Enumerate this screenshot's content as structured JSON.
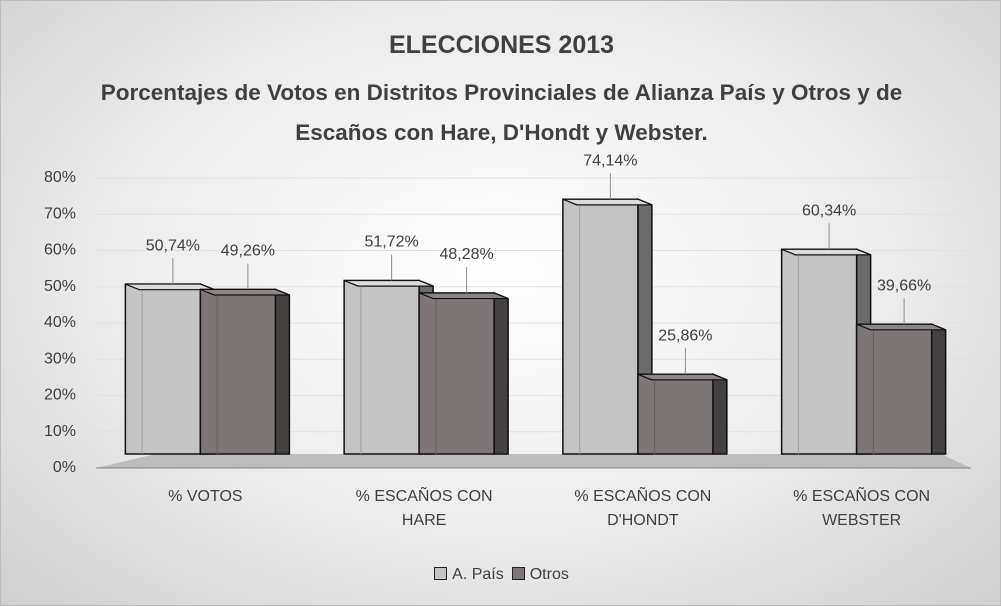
{
  "chart_data": {
    "type": "bar3d",
    "title": "ELECCIONES 2013",
    "subtitle": "Porcentajes de Votos en Distritos Provinciales de Alianza País y Otros  y de Escaños con Hare, D'Hondt y Webster.",
    "categories": [
      "% VOTOS",
      "% ESCAÑOS CON HARE",
      "% ESCAÑOS CON D'HONDT",
      "% ESCAÑOS CON WEBSTER"
    ],
    "series": [
      {
        "name": "A. País",
        "color": "#c4c4c4",
        "values": [
          50.74,
          51.72,
          74.14,
          60.34
        ],
        "value_labels": [
          "50,74%",
          "51,72%",
          "74,14%",
          "60,34%"
        ]
      },
      {
        "name": "Otros",
        "color": "#7e7676",
        "values": [
          49.26,
          48.28,
          25.86,
          39.66
        ],
        "value_labels": [
          "49,26%",
          "48,28%",
          "25,86%",
          "39,66%"
        ]
      }
    ],
    "ylim": [
      0,
      80
    ],
    "yticks": [
      {
        "value": 0,
        "label": "0%"
      },
      {
        "value": 10,
        "label": "10%"
      },
      {
        "value": 20,
        "label": "20%"
      },
      {
        "value": 30,
        "label": "30%"
      },
      {
        "value": 40,
        "label": "40%"
      },
      {
        "value": 50,
        "label": "50%"
      },
      {
        "value": 60,
        "label": "60%"
      },
      {
        "value": 70,
        "label": "70%"
      },
      {
        "value": 80,
        "label": "80%"
      }
    ],
    "grid": true,
    "legend": "bottom"
  }
}
